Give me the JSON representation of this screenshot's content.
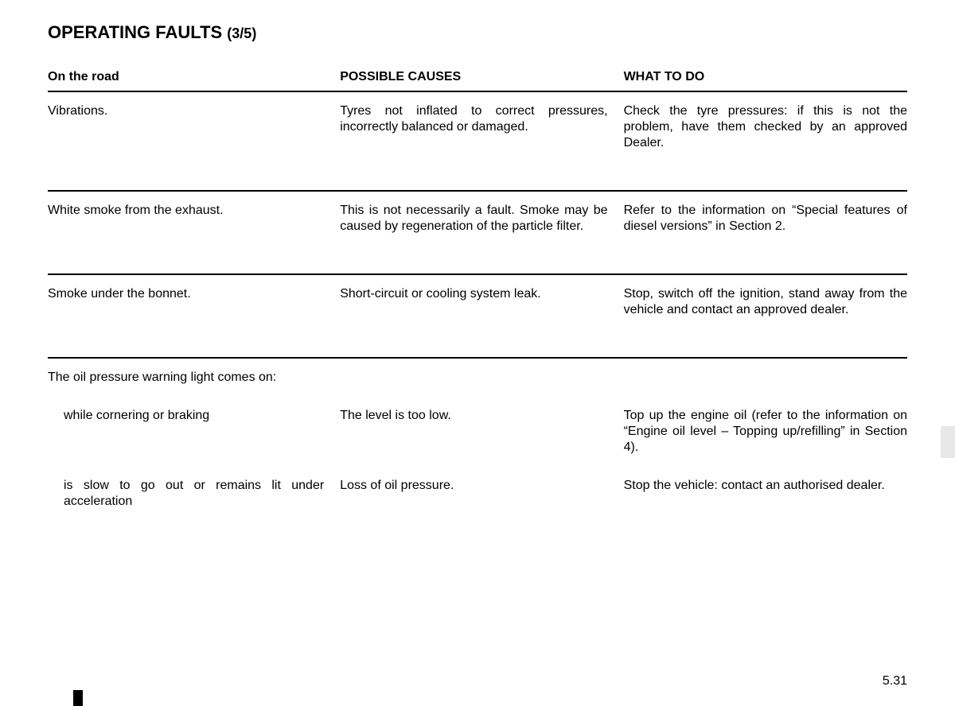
{
  "page": {
    "title_main": "OPERATING FAULTS ",
    "title_sub": "(3/5)",
    "page_number": "5.31"
  },
  "headers": {
    "col1": "On the road",
    "col2": "POSSIBLE CAUSES",
    "col3": "WHAT TO DO"
  },
  "rows": {
    "r1": {
      "symptom": "Vibrations.",
      "cause": "Tyres not inflated to correct pressures, incorrectly balanced or damaged.",
      "action": "Check the tyre pressures: if this is not the problem, have them checked by an approved Dealer."
    },
    "r2": {
      "symptom": "White smoke from the exhaust.",
      "cause": "This is not necessarily a fault. Smoke may be caused by regeneration of the particle filter.",
      "action": "Refer to the information on “Special features of diesel versions” in Section 2."
    },
    "r3": {
      "symptom": "Smoke under the bonnet.",
      "cause": "Short-circuit or cooling system leak.",
      "action": "Stop, switch off the ignition, stand away from the vehicle and contact an approved dealer."
    },
    "r4": {
      "symptom": "The oil pressure warning light comes on:",
      "cause": "",
      "action": ""
    },
    "r5": {
      "symptom": "while cornering or braking",
      "cause": "The level is too low.",
      "action": "Top up the engine oil (refer to the information on “Engine oil level – Topping up/refilling” in Section 4)."
    },
    "r6": {
      "symptom": "is slow to go out or remains lit under acceleration",
      "cause": "Loss of oil pressure.",
      "action": "Stop the vehicle: contact an authorised dealer."
    }
  },
  "style": {
    "text_color": "#000000",
    "background": "#ffffff",
    "tab_color": "#e8e8e8",
    "font_size_body": 16,
    "font_size_title": 22
  }
}
